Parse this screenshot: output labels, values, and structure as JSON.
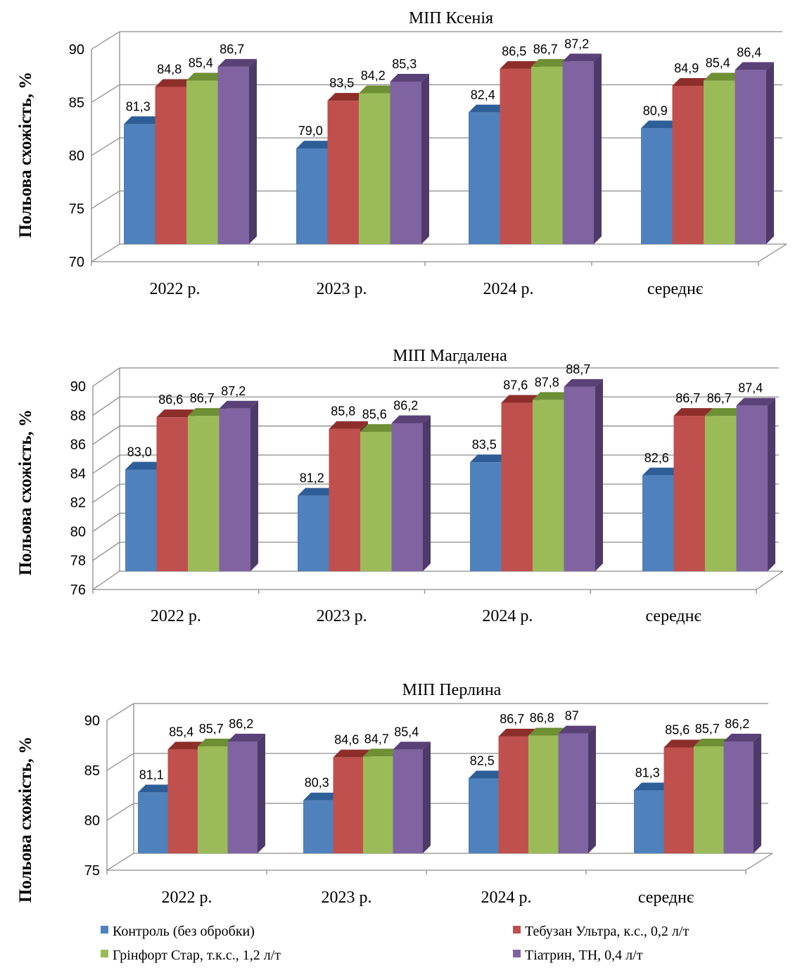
{
  "colors": {
    "series": [
      "#4F81BD",
      "#C0504D",
      "#9BBB59",
      "#8064A2"
    ],
    "series_top": [
      "#2E5E98",
      "#8E2E2B",
      "#6E8F34",
      "#5A4178"
    ],
    "series_side": [
      "#2F4F7A",
      "#7A2F2D",
      "#5E7734",
      "#4E3A68"
    ],
    "grid": "#8C8C8C"
  },
  "legend": [
    "Контроль (без обробки)",
    "Тебузан  Ультра, к.с., 0,2 л/т",
    "Грінфорт Стар, т.к.с.,  1,2 л/т",
    "Тіатрин, ТН, 0,4 л/т"
  ],
  "chart_data": [
    {
      "type": "bar",
      "title": "МІП Ксенія",
      "ylabel": "Польова схожість, %",
      "ylim": [
        70,
        90
      ],
      "yticks": [
        "70",
        "75",
        "80",
        "85",
        "90"
      ],
      "categories": [
        "2022 р.",
        "2023 р.",
        "2024 р.",
        "середнє"
      ],
      "series": [
        {
          "name": "Контроль (без обробки)",
          "values": [
            81.3,
            79.0,
            82.4,
            80.9
          ],
          "labels": [
            "81,3",
            "79,0",
            "82,4",
            "80,9"
          ]
        },
        {
          "name": "Тебузан  Ультра, к.с., 0,2 л/т",
          "values": [
            84.8,
            83.5,
            86.5,
            84.9
          ],
          "labels": [
            "84,8",
            "83,5",
            "86,5",
            "84,9"
          ]
        },
        {
          "name": "Грінфорт Стар, т.к.с.,  1,2 л/т",
          "values": [
            85.4,
            84.2,
            86.7,
            85.4
          ],
          "labels": [
            "85,4",
            "84,2",
            "86,7",
            "85,4"
          ]
        },
        {
          "name": "Тіатрин, ТН, 0,4 л/т",
          "values": [
            86.7,
            85.3,
            87.2,
            86.4
          ],
          "labels": [
            "86,7",
            "85,3",
            "87,2",
            "86,4"
          ]
        }
      ]
    },
    {
      "type": "bar",
      "title": "МІП Магдалена",
      "ylabel": "Польова схожість, %",
      "ylim": [
        76,
        90
      ],
      "yticks": [
        "76",
        "78",
        "80",
        "82",
        "84",
        "86",
        "88",
        "90"
      ],
      "categories": [
        "2022 р.",
        "2023 р.",
        "2024 р.",
        "середнє"
      ],
      "series": [
        {
          "name": "Контроль (без обробки)",
          "values": [
            83.0,
            81.2,
            83.5,
            82.6
          ],
          "labels": [
            "83,0",
            "81,2",
            "83,5",
            "82,6"
          ]
        },
        {
          "name": "Тебузан  Ультра, к.с., 0,2 л/т",
          "values": [
            86.6,
            85.8,
            87.6,
            86.7
          ],
          "labels": [
            "86,6",
            "85,8",
            "87,6",
            "86,7"
          ]
        },
        {
          "name": "Грінфорт Стар, т.к.с.,  1,2 л/т",
          "values": [
            86.7,
            85.6,
            87.8,
            86.7
          ],
          "labels": [
            "86,7",
            "85,6",
            "87,8",
            "86,7"
          ]
        },
        {
          "name": "Тіатрин, ТН, 0,4 л/т",
          "values": [
            87.2,
            86.2,
            88.7,
            87.4
          ],
          "labels": [
            "87,2",
            "86,2",
            "88,7",
            "87,4"
          ]
        }
      ]
    },
    {
      "type": "bar",
      "title": "МІП Перлина",
      "ylabel": "Польова схожість, %",
      "ylim": [
        75,
        90
      ],
      "yticks": [
        "75",
        "80",
        "85",
        "90"
      ],
      "categories": [
        "2022 р.",
        "2023 р.",
        "2024 р.",
        "середнє"
      ],
      "series": [
        {
          "name": "Контроль (без обробки)",
          "values": [
            81.1,
            80.3,
            82.5,
            81.3
          ],
          "labels": [
            "81,1",
            "80,3",
            "82,5",
            "81,3"
          ]
        },
        {
          "name": "Тебузан  Ультра, к.с., 0,2 л/т",
          "values": [
            85.4,
            84.6,
            86.7,
            85.6
          ],
          "labels": [
            "85,4",
            "84,6",
            "86,7",
            "85,6"
          ]
        },
        {
          "name": "Грінфорт Стар, т.к.с.,  1,2 л/т",
          "values": [
            85.7,
            84.7,
            86.8,
            85.7
          ],
          "labels": [
            "85,7",
            "84,7",
            "86,8",
            "85,7"
          ]
        },
        {
          "name": "Тіатрин, ТН, 0,4 л/т",
          "values": [
            86.2,
            85.4,
            87,
            86.2
          ],
          "labels": [
            "86,2",
            "85,4",
            "87",
            "86,2"
          ]
        }
      ]
    }
  ]
}
